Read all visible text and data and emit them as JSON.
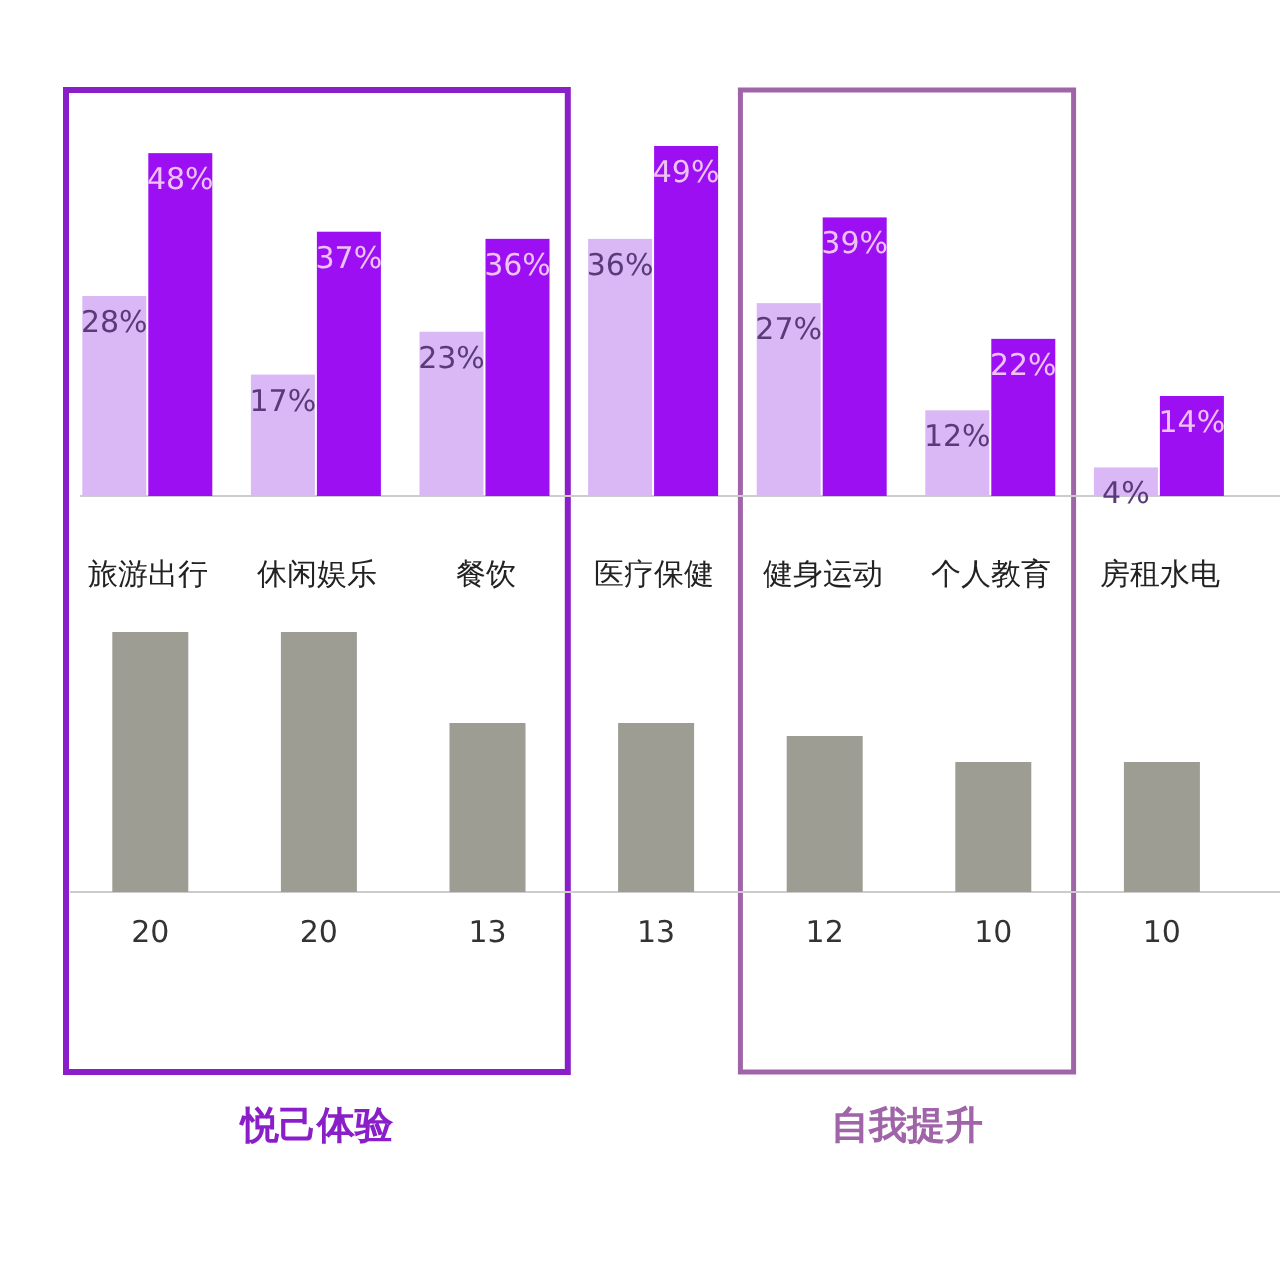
{
  "chart_data": [
    {
      "type": "bar",
      "categories": [
        "旅游出行",
        "休闲娱乐",
        "餐饮",
        "医疗保健",
        "健身运动",
        "个人教育",
        "房租水电"
      ],
      "series": [
        {
          "color": "#d9b8f5",
          "values": [
            28,
            17,
            23,
            36,
            27,
            12,
            4
          ],
          "value_labels": [
            "28%",
            "17%",
            "23%",
            "36%",
            "27%",
            "12%",
            "4%"
          ]
        },
        {
          "color": "#9b0ff2",
          "values": [
            48,
            37,
            36,
            49,
            39,
            22,
            14
          ],
          "value_labels": [
            "48%",
            "37%",
            "36%",
            "49%",
            "39%",
            "22%",
            "14%"
          ]
        }
      ]
    },
    {
      "type": "bar",
      "categories": [
        null,
        null,
        null,
        null,
        null,
        null,
        null
      ],
      "color": "#9e9d94",
      "values": [
        20,
        20,
        13,
        13,
        12,
        10,
        10
      ],
      "data_labels": true,
      "annotations": [
        "悦己体验",
        "自我提升"
      ]
    }
  ]
}
